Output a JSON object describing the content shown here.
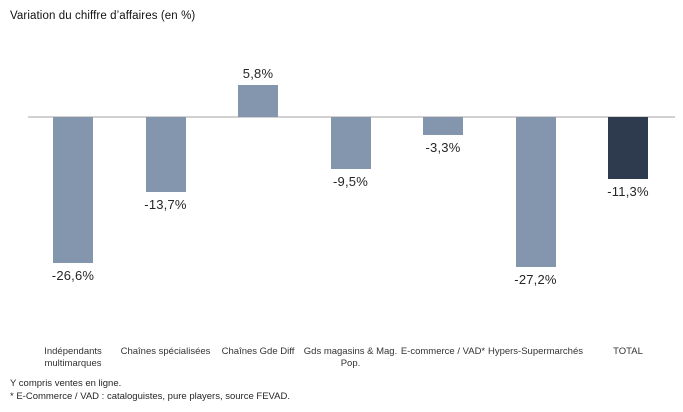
{
  "title": "Variation du chiffre d’affaires (en %)",
  "chart_data": {
    "type": "bar",
    "title": "Variation du chiffre d’affaires (en %)",
    "categories": [
      "Indépendants multimarques",
      "Chaînes spécialisées",
      "Chaînes Gde Diff",
      "Gds magasins & Mag. Pop.",
      "E-commerce / VAD*",
      "Hypers-Supermarchés",
      "TOTAL"
    ],
    "values": [
      -26.6,
      -13.7,
      5.8,
      -9.5,
      -3.3,
      -27.2,
      -11.3
    ],
    "value_labels": [
      "-26,6%",
      "-13,7%",
      "5,8%",
      "-9,5%",
      "-3,3%",
      "-27,2%",
      "-11,3%"
    ],
    "bar_colors": [
      "#8496ae",
      "#8496ae",
      "#8496ae",
      "#8496ae",
      "#8496ae",
      "#8496ae",
      "#2e3a4d"
    ],
    "axis_color": "#d2d0d0",
    "xlabel": "",
    "ylabel": "",
    "ylim": [
      -30,
      10
    ],
    "grid": false,
    "legend": false
  },
  "footnotes": [
    "Y compris ventes en ligne.",
    "* E-Commerce / VAD : cataloguistes, pure players, source FEVAD."
  ]
}
